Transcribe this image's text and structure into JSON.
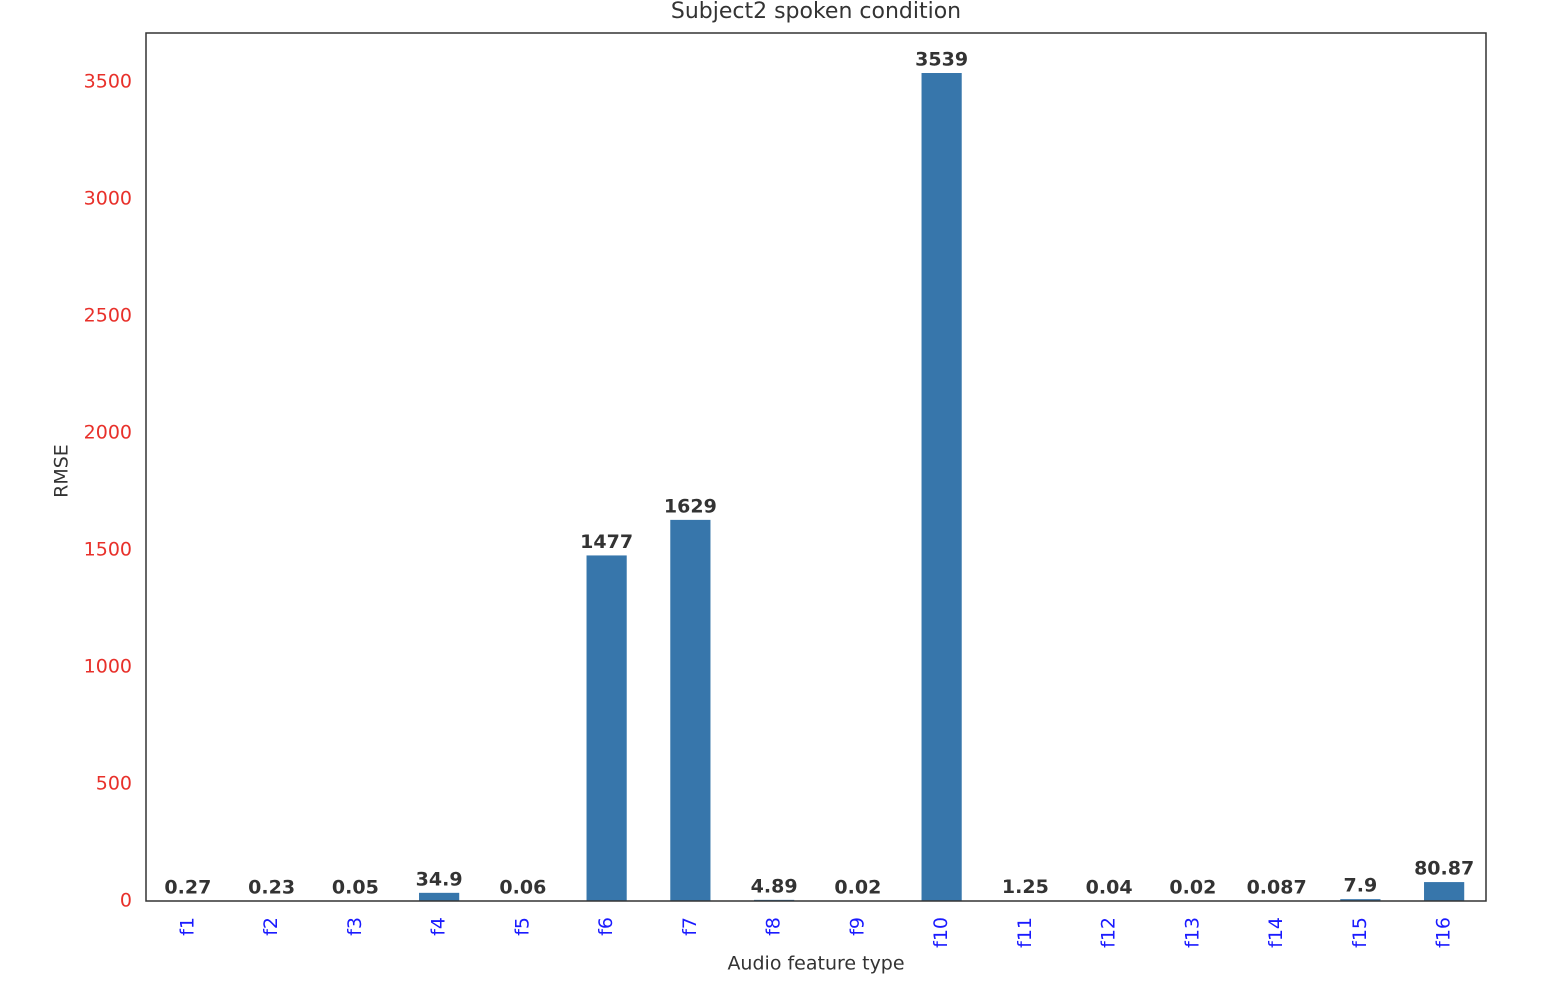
{
  "chart_data": {
    "type": "bar",
    "title": "Subject2 spoken condition",
    "x_label": "Audio feature type",
    "y_label": "RMSE",
    "categories": [
      "f1",
      "f2",
      "f3",
      "f4",
      "f5",
      "f6",
      "f7",
      "f8",
      "f9",
      "f10",
      "f11",
      "f12",
      "f13",
      "f14",
      "f15",
      "f16"
    ],
    "values": [
      0.27,
      0.23,
      0.05,
      34.9,
      0.06,
      1477,
      1629,
      4.89,
      0.02,
      3539,
      1.25,
      0.04,
      0.02,
      0.087,
      7.9,
      80.87
    ],
    "color": "#3776ab",
    "ylim": [
      0,
      3710
    ],
    "yticks": [
      0,
      500,
      1000,
      1500,
      2000,
      2500,
      3000,
      3500
    ],
    "ytick_color": "#e8302a",
    "xtick_color": "#1a1aff",
    "grid": false
  }
}
